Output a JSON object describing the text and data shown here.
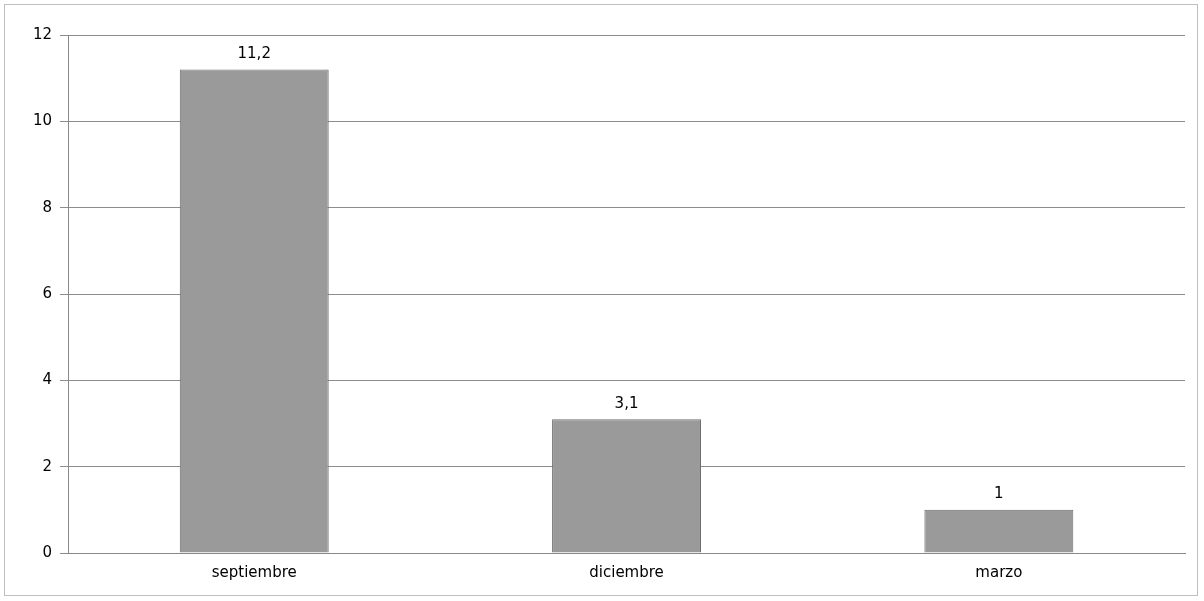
{
  "chart_data": {
    "type": "bar",
    "categories": [
      "septiembre",
      "diciembre",
      "marzo"
    ],
    "values": [
      11.2,
      3.1,
      1
    ],
    "value_labels": [
      "11,2",
      "3,1",
      "1"
    ],
    "color": "#9a9a9a",
    "ylim": [
      0,
      12
    ],
    "yticks": [
      0,
      2,
      4,
      6,
      8,
      10,
      12
    ],
    "grid": "y",
    "legend": false
  }
}
